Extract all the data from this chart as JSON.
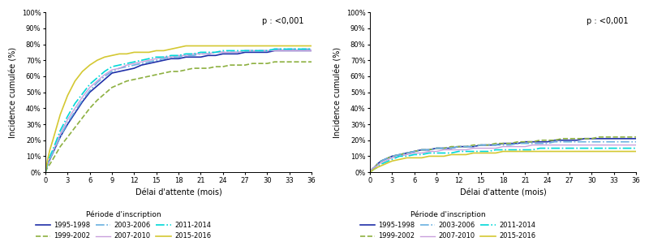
{
  "xlabel": "Délai d'attente (mois)",
  "ylabel": "Incidence cumulée (%)",
  "legend_title": "Période d'inscription",
  "pvalue": "p : <0,001",
  "xticks": [
    0,
    3,
    6,
    9,
    12,
    15,
    18,
    21,
    24,
    27,
    30,
    33,
    36
  ],
  "yticks": [
    0,
    10,
    20,
    30,
    40,
    50,
    60,
    70,
    80,
    90,
    100
  ],
  "series": [
    {
      "label": "1995-1998",
      "color": "#1f2fa8",
      "linestyle": "solid",
      "linewidth": 1.2
    },
    {
      "label": "1999-2002",
      "color": "#8db040",
      "linestyle": "dashed",
      "linewidth": 1.2
    },
    {
      "label": "2003-2006",
      "color": "#6ab0e0",
      "linestyle": "dashdot",
      "linewidth": 1.2
    },
    {
      "label": "2007-2010",
      "color": "#c9a0dc",
      "linestyle": "solid",
      "linewidth": 1.0
    },
    {
      "label": "2011-2014",
      "color": "#00d8d8",
      "linestyle": "dashdot",
      "linewidth": 1.2
    },
    {
      "label": "2015-2016",
      "color": "#d4c832",
      "linestyle": "solid",
      "linewidth": 1.2
    }
  ],
  "left_curves": {
    "x": [
      0,
      0.3,
      0.6,
      1,
      1.5,
      2,
      3,
      4,
      5,
      6,
      7,
      8,
      9,
      10,
      11,
      12,
      13,
      14,
      15,
      16,
      17,
      18,
      19,
      20,
      21,
      22,
      23,
      24,
      25,
      26,
      27,
      28,
      29,
      30,
      31,
      32,
      33,
      34,
      35,
      36
    ],
    "y_1995": [
      0,
      5,
      8,
      12,
      17,
      22,
      30,
      37,
      44,
      50,
      54,
      58,
      62,
      63,
      64,
      65,
      67,
      68,
      69,
      70,
      71,
      71,
      72,
      72,
      72,
      73,
      73,
      74,
      74,
      74,
      75,
      75,
      75,
      75,
      76,
      76,
      76,
      76,
      76,
      76
    ],
    "y_1999": [
      0,
      3,
      5,
      8,
      12,
      16,
      22,
      28,
      34,
      40,
      45,
      49,
      53,
      55,
      57,
      58,
      59,
      60,
      61,
      62,
      63,
      63,
      64,
      65,
      65,
      65,
      66,
      66,
      67,
      67,
      67,
      68,
      68,
      68,
      69,
      69,
      69,
      69,
      69,
      69
    ],
    "y_2003": [
      0,
      5,
      8,
      12,
      17,
      22,
      31,
      38,
      45,
      51,
      56,
      60,
      63,
      65,
      66,
      67,
      68,
      69,
      70,
      71,
      72,
      72,
      73,
      73,
      74,
      74,
      75,
      75,
      75,
      75,
      76,
      76,
      76,
      76,
      77,
      77,
      77,
      77,
      77,
      77
    ],
    "y_2007": [
      0,
      5,
      9,
      13,
      18,
      24,
      33,
      40,
      47,
      53,
      57,
      61,
      64,
      65,
      67,
      68,
      69,
      70,
      71,
      72,
      72,
      73,
      73,
      74,
      74,
      74,
      75,
      75,
      75,
      75,
      76,
      76,
      76,
      76,
      76,
      76,
      76,
      76,
      76,
      76
    ],
    "y_2011": [
      0,
      6,
      10,
      14,
      20,
      26,
      35,
      43,
      49,
      55,
      59,
      63,
      66,
      67,
      68,
      69,
      70,
      71,
      72,
      72,
      73,
      73,
      74,
      74,
      75,
      75,
      75,
      76,
      76,
      76,
      76,
      76,
      76,
      76,
      77,
      77,
      77,
      77,
      77,
      77
    ],
    "y_2015": [
      0,
      8,
      14,
      20,
      28,
      36,
      48,
      57,
      63,
      67,
      70,
      72,
      73,
      74,
      74,
      75,
      75,
      75,
      76,
      76,
      77,
      78,
      79,
      79,
      79,
      79,
      79,
      79,
      79,
      79,
      79,
      79,
      79,
      79,
      79,
      79,
      79,
      79,
      79,
      79
    ]
  },
  "right_curves": {
    "x": [
      0,
      0.3,
      0.6,
      1,
      1.5,
      2,
      3,
      4,
      5,
      6,
      7,
      8,
      9,
      10,
      11,
      12,
      13,
      14,
      15,
      16,
      17,
      18,
      19,
      20,
      21,
      22,
      23,
      24,
      25,
      26,
      27,
      28,
      29,
      30,
      31,
      32,
      33,
      34,
      35,
      36
    ],
    "y_1995": [
      0,
      2,
      3,
      5,
      7,
      8,
      10,
      11,
      12,
      13,
      14,
      14,
      15,
      15,
      15,
      16,
      16,
      16,
      17,
      17,
      17,
      18,
      18,
      18,
      19,
      19,
      19,
      19,
      20,
      20,
      20,
      20,
      21,
      21,
      21,
      21,
      21,
      21,
      21,
      21
    ],
    "y_1999": [
      0,
      2,
      3,
      5,
      7,
      8,
      10,
      11,
      12,
      13,
      14,
      14,
      15,
      15,
      16,
      16,
      16,
      17,
      17,
      17,
      18,
      18,
      18,
      19,
      19,
      19,
      20,
      20,
      20,
      21,
      21,
      21,
      21,
      21,
      22,
      22,
      22,
      22,
      22,
      22
    ],
    "y_2003": [
      0,
      2,
      3,
      5,
      7,
      8,
      10,
      11,
      12,
      13,
      14,
      14,
      15,
      15,
      15,
      16,
      16,
      16,
      17,
      17,
      17,
      17,
      17,
      18,
      18,
      18,
      18,
      18,
      19,
      19,
      19,
      19,
      19,
      19,
      19,
      19,
      19,
      19,
      19,
      19
    ],
    "y_2007": [
      0,
      2,
      3,
      4,
      6,
      7,
      9,
      10,
      11,
      12,
      12,
      13,
      13,
      14,
      14,
      14,
      14,
      15,
      15,
      15,
      15,
      16,
      16,
      16,
      16,
      17,
      17,
      17,
      17,
      17,
      17,
      17,
      17,
      17,
      17,
      17,
      17,
      17,
      17,
      17
    ],
    "y_2011": [
      0,
      1,
      2,
      3,
      5,
      6,
      8,
      10,
      10,
      11,
      11,
      12,
      12,
      12,
      12,
      13,
      13,
      13,
      13,
      13,
      14,
      14,
      14,
      14,
      14,
      14,
      15,
      15,
      15,
      15,
      15,
      15,
      15,
      15,
      15,
      15,
      15,
      15,
      15,
      15
    ],
    "y_2015": [
      0,
      1,
      2,
      3,
      4,
      5,
      7,
      8,
      9,
      9,
      9,
      10,
      10,
      10,
      11,
      11,
      11,
      12,
      12,
      12,
      12,
      13,
      13,
      13,
      13,
      13,
      13,
      13,
      13,
      13,
      13,
      13,
      13,
      13,
      13,
      13,
      13,
      13,
      13,
      13
    ]
  }
}
